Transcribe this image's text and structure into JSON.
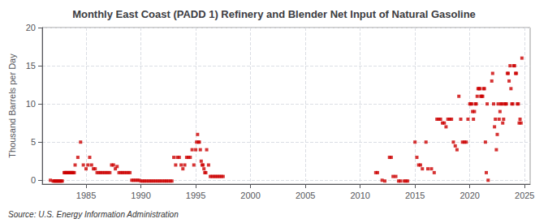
{
  "chart_data": {
    "type": "scatter",
    "title": "Monthly East Coast (PADD 1) Refinery and Blender Net Input of Natural Gasoline",
    "ylabel": "Thousand Barrels per Day",
    "annotation": "Source: U.S. Energy Information Administration",
    "color": "#cc0000",
    "marker": "square",
    "grid": true,
    "xlim": [
      1981.0,
      2025.5
    ],
    "ylim": [
      -0.5,
      20
    ],
    "xticks": [
      1985,
      1990,
      1995,
      2000,
      2005,
      2010,
      2015,
      2020,
      2025
    ],
    "yticks": [
      0,
      5,
      10,
      15,
      20
    ],
    "x": [
      1981.75,
      1982.0,
      1982.08,
      1982.17,
      1982.25,
      1982.33,
      1982.42,
      1982.5,
      1982.58,
      1982.67,
      1982.75,
      1982.83,
      1983.0,
      1983.08,
      1983.17,
      1983.25,
      1983.33,
      1983.42,
      1983.5,
      1983.58,
      1983.67,
      1983.75,
      1983.83,
      1983.92,
      1984.0,
      1984.25,
      1984.5,
      1984.75,
      1985.0,
      1985.17,
      1985.33,
      1985.5,
      1985.67,
      1985.83,
      1986.0,
      1986.17,
      1986.33,
      1986.5,
      1986.67,
      1986.83,
      1987.0,
      1987.17,
      1987.33,
      1987.5,
      1987.67,
      1987.83,
      1988.0,
      1988.17,
      1988.33,
      1988.5,
      1988.67,
      1988.83,
      1989.0,
      1989.17,
      1989.33,
      1989.5,
      1989.67,
      1989.83,
      1990.0,
      1990.17,
      1990.33,
      1990.5,
      1990.67,
      1990.83,
      1991.0,
      1991.17,
      1991.33,
      1991.5,
      1991.67,
      1991.83,
      1992.0,
      1992.17,
      1992.33,
      1992.5,
      1992.67,
      1992.83,
      1993.0,
      1993.17,
      1993.33,
      1993.5,
      1993.67,
      1993.83,
      1994.0,
      1994.17,
      1994.33,
      1994.5,
      1994.67,
      1994.83,
      1995.0,
      1995.08,
      1995.17,
      1995.25,
      1995.33,
      1995.42,
      1995.5,
      1995.58,
      1995.67,
      1995.75,
      1995.83,
      1995.92,
      1996.0,
      1996.17,
      1996.33,
      1996.5,
      1996.67,
      1996.83,
      1997.0,
      1997.17,
      1997.33,
      1997.5,
      2011.42,
      2011.58,
      2012.0,
      2012.25,
      2012.67,
      2012.83,
      2013.0,
      2013.25,
      2013.5,
      2013.67,
      2014.0,
      2014.17,
      2014.33,
      2015.0,
      2015.17,
      2015.33,
      2015.5,
      2015.67,
      2016.0,
      2016.17,
      2016.5,
      2016.75,
      2017.0,
      2017.17,
      2017.33,
      2017.5,
      2017.67,
      2017.83,
      2018.0,
      2018.17,
      2018.33,
      2018.5,
      2018.67,
      2018.83,
      2019.0,
      2019.17,
      2019.33,
      2019.5,
      2019.67,
      2019.83,
      2020.0,
      2020.08,
      2020.17,
      2020.25,
      2020.33,
      2020.42,
      2020.5,
      2020.58,
      2020.67,
      2020.75,
      2020.83,
      2020.92,
      2021.0,
      2021.08,
      2021.17,
      2021.25,
      2021.33,
      2021.42,
      2021.5,
      2021.58,
      2021.67,
      2022.0,
      2022.08,
      2022.17,
      2022.25,
      2022.33,
      2022.42,
      2022.5,
      2022.58,
      2022.67,
      2022.75,
      2022.83,
      2022.92,
      2023.0,
      2023.08,
      2023.17,
      2023.25,
      2023.33,
      2023.42,
      2023.5,
      2023.58,
      2023.67,
      2023.75,
      2023.83,
      2023.92,
      2024.0,
      2024.08,
      2024.17,
      2024.25,
      2024.33,
      2024.42,
      2024.5,
      2024.58,
      2024.67,
      2024.75
    ],
    "values": [
      0.0,
      -0.1,
      -0.1,
      -0.1,
      -0.1,
      -0.1,
      -0.1,
      -0.1,
      -0.1,
      -0.1,
      -0.1,
      -0.1,
      1.0,
      1.0,
      1.0,
      1.0,
      1.0,
      1.0,
      1.0,
      1.0,
      1.0,
      1.0,
      1.0,
      1.0,
      2.0,
      3.0,
      5.0,
      2.0,
      1.5,
      2.0,
      3.0,
      2.0,
      1.5,
      1.5,
      1.0,
      1.0,
      1.0,
      1.0,
      1.0,
      1.0,
      1.0,
      1.0,
      2.0,
      2.0,
      1.5,
      1.8,
      1.0,
      1.0,
      1.0,
      1.0,
      1.0,
      1.0,
      1.0,
      0.0,
      0.0,
      0.0,
      0.0,
      0.0,
      -0.1,
      -0.1,
      -0.1,
      -0.1,
      -0.1,
      -0.1,
      -0.1,
      -0.1,
      -0.1,
      -0.1,
      -0.1,
      -0.1,
      -0.1,
      -0.1,
      -0.1,
      -0.1,
      -0.1,
      -0.1,
      3.0,
      2.0,
      3.0,
      3.0,
      2.0,
      1.5,
      2.0,
      3.0,
      3.0,
      3.0,
      4.0,
      2.0,
      4.0,
      5.0,
      6.0,
      5.0,
      5.0,
      4.0,
      2.5,
      2.0,
      2.0,
      1.5,
      1.0,
      1.0,
      4.0,
      2.0,
      0.5,
      0.5,
      0.5,
      0.5,
      0.5,
      0.5,
      0.5,
      0.5,
      1.0,
      1.0,
      0.0,
      -0.1,
      3.0,
      3.0,
      0.5,
      0.5,
      -0.1,
      -0.1,
      -0.1,
      -0.1,
      -0.1,
      5.0,
      3.0,
      2.0,
      2.0,
      1.5,
      5.0,
      1.5,
      1.5,
      1.0,
      8.0,
      8.0,
      8.0,
      7.5,
      7.5,
      7.0,
      8.0,
      8.0,
      8.0,
      5.0,
      4.5,
      4.0,
      11.0,
      8.0,
      5.0,
      5.0,
      5.0,
      8.0,
      10.0,
      10.0,
      10.0,
      9.0,
      8.0,
      9.0,
      10.0,
      10.0,
      11.0,
      12.0,
      12.0,
      12.0,
      11.0,
      11.0,
      11.0,
      12.0,
      12.0,
      5.0,
      1.0,
      10.0,
      0.0,
      13.0,
      14.0,
      10.0,
      7.0,
      8.0,
      4.0,
      6.0,
      10.0,
      8.0,
      9.0,
      10.0,
      10.0,
      7.5,
      8.0,
      10.0,
      10.0,
      10.0,
      14.0,
      14.0,
      13.0,
      15.0,
      12.0,
      10.0,
      10.0,
      15.0,
      15.0,
      14.0,
      14.0,
      10.0,
      10.0,
      7.5,
      8.0,
      7.5,
      16.0
    ]
  }
}
